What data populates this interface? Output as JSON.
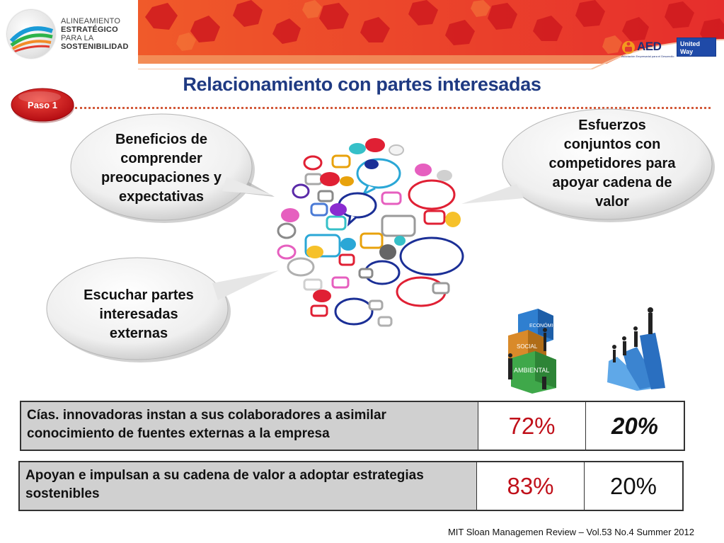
{
  "header": {
    "logo": {
      "line1": "ALINEAMIENTO",
      "line2": "ESTRATÉGICO",
      "line3": "PARA LA",
      "line4": "SOSTENIBILIDAD"
    },
    "sponsors": {
      "aed_word": "AED",
      "aed_sub": "Asociación Empresarial para el Desarrollo",
      "uw_line1": "United",
      "uw_line2": "Way"
    }
  },
  "slide": {
    "title": "Relacionamiento con partes interesadas",
    "step_label": "Paso 1"
  },
  "callouts": {
    "top_left": [
      "Beneficios de",
      "comprender",
      "preocupaciones y",
      "expectativas"
    ],
    "top_right": [
      "Esfuerzos",
      "conjuntos con",
      "competidores para",
      "apoyar cadena de",
      "valor"
    ],
    "bottom_left": [
      "Escuchar partes",
      "interesadas",
      "externas"
    ]
  },
  "images": {
    "blocks": {
      "top": "ECONÓMICO",
      "mid": "SOCIAL",
      "bottom": "AMBIENTAL"
    }
  },
  "stats": [
    {
      "description": "Cías. innovadoras instan a sus colaboradores a asimilar conocimiento de fuentes externas a la empresa",
      "value_a": "72%",
      "value_b": "20%"
    },
    {
      "description": "Apoyan e impulsan a su cadena de valor a adoptar estrategias sostenibles",
      "value_a": "83%",
      "value_b": "20%"
    }
  ],
  "footer": {
    "citation": "MIT Sloan Managemen Review – Vol.53 No.4 Summer 2012"
  },
  "colors": {
    "title_blue": "#1f3a82",
    "banner_red": "#ed3b2d",
    "value_red": "#c0101a",
    "step_red": "#d9161e"
  }
}
